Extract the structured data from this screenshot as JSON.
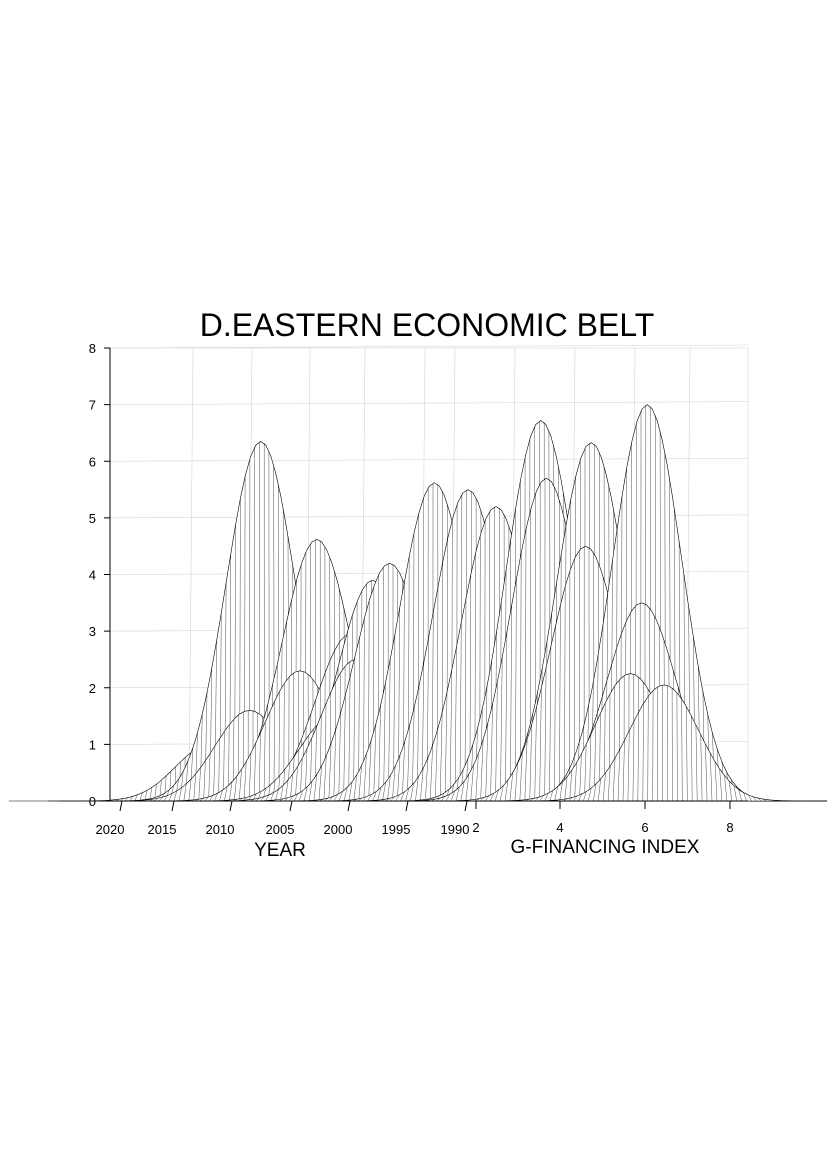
{
  "chart_data": {
    "type": "area",
    "projection": "3d-waterfall",
    "title": "D.EASTERN ECONOMIC BELT",
    "xlabel": "YEAR",
    "zlabel": "G-FINANCING INDEX",
    "y_ticks": [
      "0",
      "1",
      "2",
      "3",
      "4",
      "5",
      "6",
      "7",
      "8"
    ],
    "ylim": [
      0,
      8
    ],
    "year_ticks": [
      "2020",
      "2015",
      "2010",
      "2005",
      "2000",
      "1995",
      "1990"
    ],
    "index_ticks": [
      "2",
      "4",
      "6",
      "8"
    ],
    "grid": true,
    "peaks": [
      {
        "center": 1.4,
        "peak": 1.0
      },
      {
        "center": 2.3,
        "peak": 6.35
      },
      {
        "center": 2.1,
        "peak": 1.6
      },
      {
        "center": 3.3,
        "peak": 4.62
      },
      {
        "center": 3.0,
        "peak": 2.3
      },
      {
        "center": 3.9,
        "peak": 2.95
      },
      {
        "center": 3.6,
        "peak": 1.5
      },
      {
        "center": 4.3,
        "peak": 3.9
      },
      {
        "center": 4.0,
        "peak": 2.5
      },
      {
        "center": 4.6,
        "peak": 4.2
      },
      {
        "center": 5.4,
        "peak": 5.62
      },
      {
        "center": 6.0,
        "peak": 5.5
      },
      {
        "center": 6.5,
        "peak": 5.2
      },
      {
        "center": 7.3,
        "peak": 6.72
      },
      {
        "center": 7.4,
        "peak": 5.7
      },
      {
        "center": 8.2,
        "peak": 6.33
      },
      {
        "center": 8.1,
        "peak": 4.5
      },
      {
        "center": 9.2,
        "peak": 7.0
      },
      {
        "center": 9.1,
        "peak": 3.5
      },
      {
        "center": 8.9,
        "peak": 2.25
      },
      {
        "center": 9.5,
        "peak": 2.05
      }
    ]
  }
}
